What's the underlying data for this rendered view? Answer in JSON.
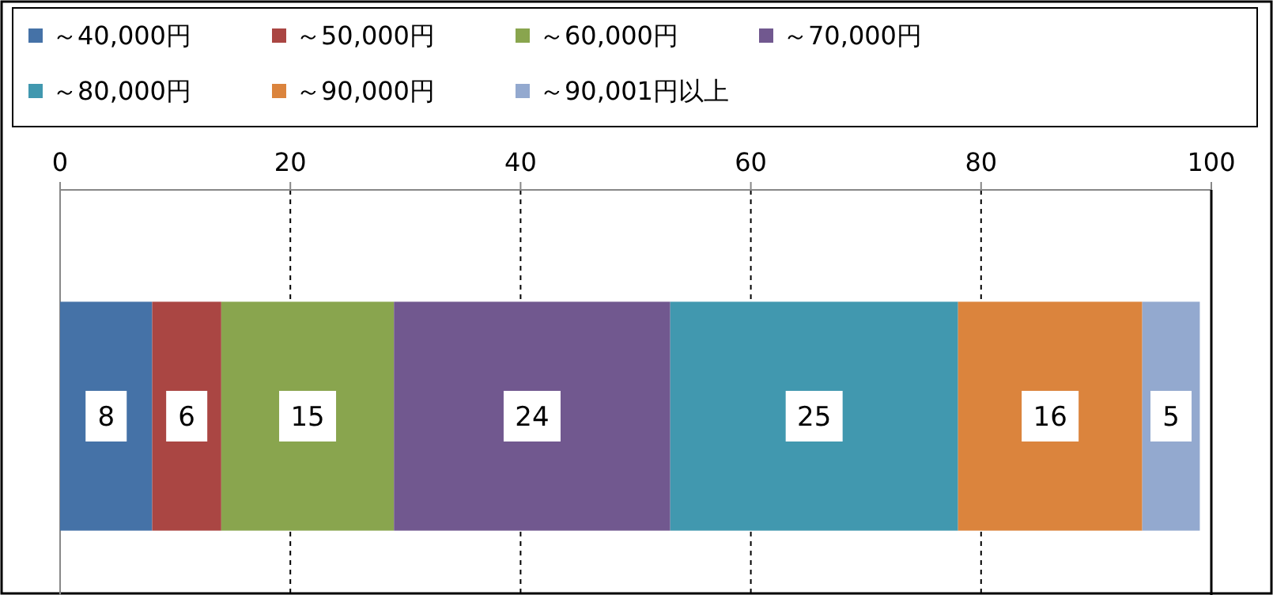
{
  "chart_data": {
    "type": "bar",
    "orientation": "horizontal",
    "stacked": true,
    "data_labels": true,
    "legend": "top",
    "grid": "x",
    "categories": [
      null
    ],
    "xlim": [
      0,
      100
    ],
    "xticks": [
      0,
      20,
      40,
      60,
      80,
      100
    ],
    "series": [
      {
        "name": "～40,000円",
        "color": "#4572a7",
        "values": [
          8
        ]
      },
      {
        "name": "～50,000円",
        "color": "#aa4643",
        "values": [
          6
        ]
      },
      {
        "name": "～60,000円",
        "color": "#89a54e",
        "values": [
          15
        ]
      },
      {
        "name": "～70,000円",
        "color": "#71588f",
        "values": [
          24
        ]
      },
      {
        "name": "～80,000円",
        "color": "#4198af",
        "values": [
          25
        ]
      },
      {
        "name": "～90,000円",
        "color": "#db843d",
        "values": [
          16
        ]
      },
      {
        "name": "～90,001円以上",
        "color": "#93a9cf",
        "values": [
          5
        ]
      }
    ]
  }
}
